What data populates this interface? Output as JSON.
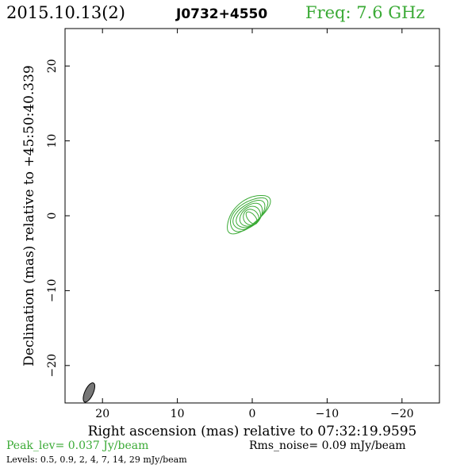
{
  "chart_data": {
    "type": "contour",
    "header": {
      "date": "2015.10.13(2)",
      "source": "J0732+4550",
      "freq": "Freq: 7.6 GHz"
    },
    "xlabel": "Right ascension (mas) relative to 07:32:19.9595",
    "ylabel": "Declination (mas) relative to +45:50:40.339",
    "xlim": [
      25,
      -25
    ],
    "ylim": [
      -25,
      25
    ],
    "x_ticks": [
      20,
      10,
      0,
      -10,
      -20
    ],
    "x_tick_labels": [
      "20",
      "10",
      "0",
      "−10",
      "−20"
    ],
    "y_ticks": [
      20,
      10,
      0,
      -10,
      -20
    ],
    "y_tick_labels": [
      "20",
      "10",
      "0",
      "−10",
      "−20"
    ],
    "peak_label": "Peak_lev=  0.037 Jy/beam",
    "rms_label": "Rms_noise= 0.09 mJy/beam",
    "levels_label": "Levels: 0.5, 0.9,   2,   4,   7,  14,  29 mJy/beam",
    "levels": [
      0.5,
      0.9,
      2,
      4,
      7,
      14,
      29
    ],
    "contour_color": "#3aaa35",
    "beam": {
      "x": 21.8,
      "y": -23.6,
      "major": 2.8,
      "minor": 1.1,
      "pa": 25,
      "color": "#777777"
    },
    "source_model": {
      "cx": 0.6,
      "cy": 0.3,
      "major": 7.0,
      "minor": 3.2,
      "pa": 40
    }
  }
}
